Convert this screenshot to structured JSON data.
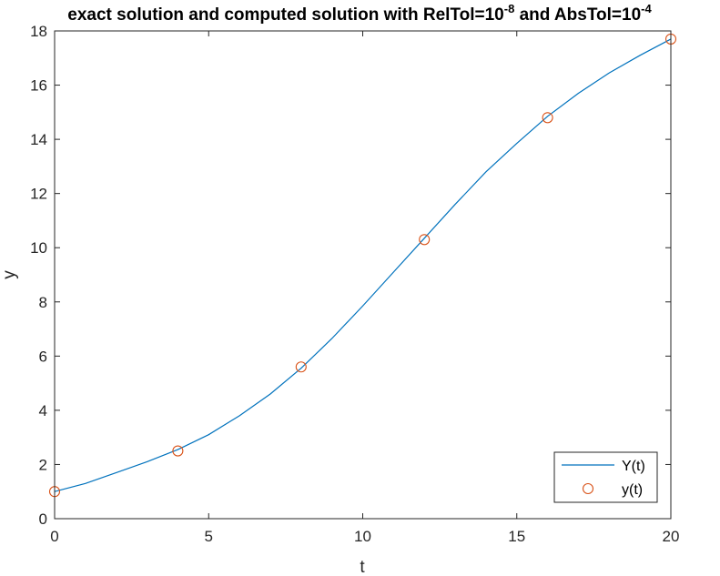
{
  "chart_data": {
    "type": "line",
    "title_main": "exact solution and computed solution with RelTol=10",
    "title_exp1": "-8",
    "title_mid": " and AbsTol=10",
    "title_exp2": "-4",
    "xlabel": "t",
    "ylabel": "y",
    "xlim": [
      0,
      20
    ],
    "ylim": [
      0,
      18
    ],
    "xticks": [
      0,
      5,
      10,
      15,
      20
    ],
    "yticks": [
      0,
      2,
      4,
      6,
      8,
      10,
      12,
      14,
      16,
      18
    ],
    "grid": false,
    "legend_position": "bottom-right",
    "series": [
      {
        "name": "Y(t)",
        "style": "line",
        "color": "#0072BD",
        "x": [
          0,
          1,
          2,
          3,
          4,
          5,
          6,
          7,
          8,
          9,
          10,
          11,
          12,
          13,
          14,
          15,
          16,
          17,
          18,
          19,
          20
        ],
        "y": [
          1.0,
          1.3,
          1.7,
          2.1,
          2.55,
          3.1,
          3.8,
          4.6,
          5.55,
          6.65,
          7.85,
          9.1,
          10.35,
          11.6,
          12.8,
          13.85,
          14.85,
          15.7,
          16.45,
          17.1,
          17.7
        ]
      },
      {
        "name": "y(t)",
        "style": "marker",
        "marker": "circle",
        "color": "#D95319",
        "x": [
          0,
          4,
          8,
          12,
          16,
          20
        ],
        "y": [
          1.0,
          2.5,
          5.6,
          10.3,
          14.8,
          17.7
        ]
      }
    ]
  }
}
